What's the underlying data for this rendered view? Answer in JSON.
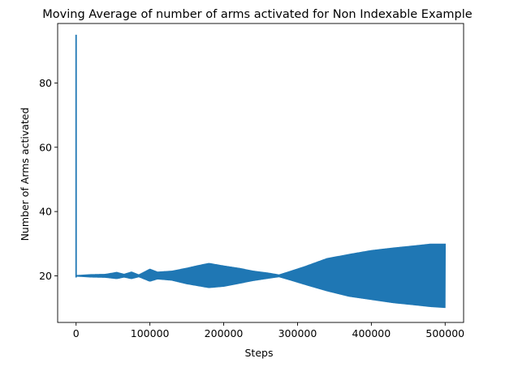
{
  "chart_data": {
    "type": "line",
    "title": "Moving Average of number of arms activated for Non Indexable Example",
    "xlabel": "Steps",
    "ylabel": "Number of Arms activated",
    "xlim": [
      -25000,
      525000
    ],
    "ylim": [
      5.5,
      98.5
    ],
    "xticks": [
      0,
      100000,
      200000,
      300000,
      400000,
      500000
    ],
    "yticks": [
      20,
      40,
      60,
      80
    ],
    "grid": false,
    "line_color": "#1f77b4",
    "series": [
      {
        "initial_spike": {
          "x": 0,
          "y_min": 19.5,
          "y_max": 95
        },
        "envelope": {
          "x": [
            0,
            20000,
            40000,
            55000,
            65000,
            75000,
            85000,
            100000,
            110000,
            130000,
            150000,
            165000,
            180000,
            200000,
            220000,
            240000,
            260000,
            275000,
            290000,
            310000,
            340000,
            370000,
            400000,
            430000,
            460000,
            480000,
            500000
          ],
          "upper": [
            20.2,
            20.5,
            20.6,
            21.2,
            20.6,
            21.3,
            20.4,
            22.2,
            21.3,
            21.6,
            22.5,
            23.3,
            24.0,
            23.2,
            22.5,
            21.6,
            21.0,
            20.4,
            21.5,
            23.0,
            25.5,
            26.8,
            28.0,
            28.8,
            29.5,
            30.0,
            30.0
          ],
          "lower": [
            19.8,
            19.5,
            19.4,
            19.0,
            19.5,
            19.0,
            19.6,
            18.2,
            18.9,
            18.5,
            17.4,
            16.8,
            16.2,
            16.6,
            17.5,
            18.4,
            19.1,
            19.6,
            18.6,
            17.2,
            15.2,
            13.5,
            12.5,
            11.5,
            10.8,
            10.3,
            10.0
          ]
        }
      }
    ]
  }
}
